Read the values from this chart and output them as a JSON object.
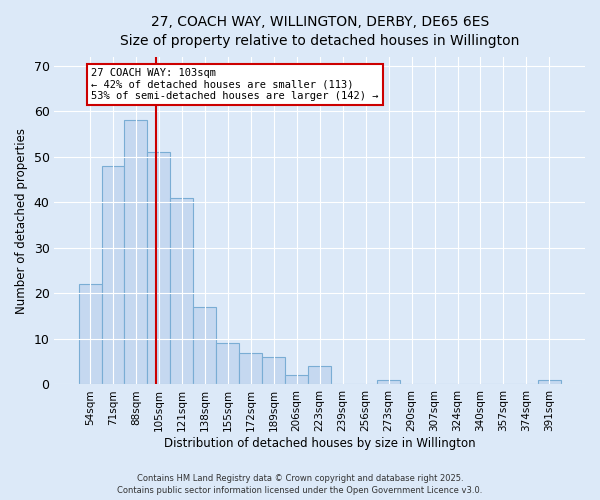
{
  "title": "27, COACH WAY, WILLINGTON, DERBY, DE65 6ES",
  "subtitle": "Size of property relative to detached houses in Willington",
  "xlabel": "Distribution of detached houses by size in Willington",
  "ylabel": "Number of detached properties",
  "bar_labels": [
    "54sqm",
    "71sqm",
    "88sqm",
    "105sqm",
    "121sqm",
    "138sqm",
    "155sqm",
    "172sqm",
    "189sqm",
    "206sqm",
    "223sqm",
    "239sqm",
    "256sqm",
    "273sqm",
    "290sqm",
    "307sqm",
    "324sqm",
    "340sqm",
    "357sqm",
    "374sqm",
    "391sqm"
  ],
  "bar_values": [
    22,
    48,
    58,
    51,
    41,
    17,
    9,
    7,
    6,
    2,
    4,
    0,
    0,
    1,
    0,
    0,
    0,
    0,
    0,
    0,
    1
  ],
  "bar_color": "#c5d8f0",
  "bar_edge_color": "#7aadd4",
  "annotation_line1": "27 COACH WAY: 103sqm",
  "annotation_line2": "← 42% of detached houses are smaller (113)",
  "annotation_line3": "53% of semi-detached houses are larger (142) →",
  "vline_color": "#cc0000",
  "vline_position": 2.88,
  "ylim": [
    0,
    72
  ],
  "yticks": [
    0,
    10,
    20,
    30,
    40,
    50,
    60,
    70
  ],
  "footer_line1": "Contains HM Land Registry data © Crown copyright and database right 2025.",
  "footer_line2": "Contains public sector information licensed under the Open Government Licence v3.0.",
  "bg_color": "#dce9f8",
  "title_fontsize": 10,
  "subtitle_fontsize": 9
}
